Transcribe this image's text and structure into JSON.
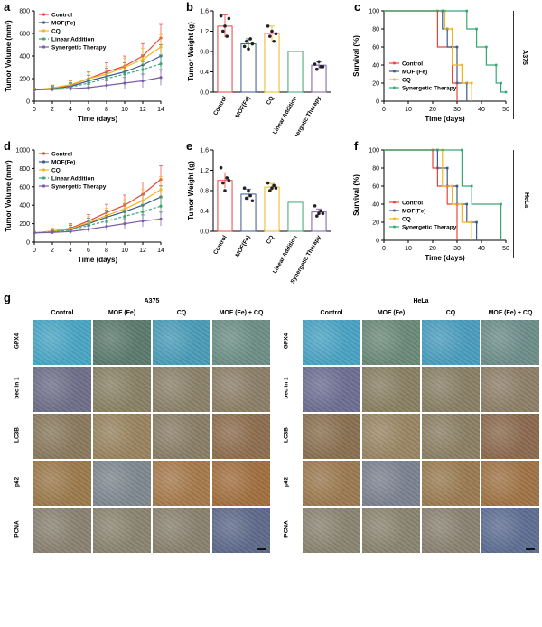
{
  "panel_labels": {
    "a": "a",
    "b": "b",
    "c": "c",
    "d": "d",
    "e": "e",
    "f": "f",
    "g": "g"
  },
  "side_labels": {
    "c": "A375",
    "f": "HeLa"
  },
  "colors": {
    "control": "#e8453c",
    "mof": "#3b5a8a",
    "cq": "#f2b51d",
    "linear": "#3aa876",
    "synergetic": "#7a5ca8",
    "edge": "#333333"
  },
  "chart_data": [
    {
      "id": "a",
      "type": "line",
      "title": "",
      "xlabel": "Time (days)",
      "ylabel": "Tumor Volume (mm³)",
      "x": [
        0,
        2,
        4,
        6,
        8,
        10,
        12,
        14
      ],
      "xlim": [
        0,
        14
      ],
      "ylim": [
        0,
        800
      ],
      "xticks": [
        "0",
        "2",
        "4",
        "6",
        "8",
        "10",
        "12",
        "14"
      ],
      "yticks": [
        "0",
        "200",
        "400",
        "600",
        "800"
      ],
      "series": [
        {
          "name": "Control",
          "color": "#e8453c",
          "values": [
            100,
            115,
            140,
            200,
            260,
            310,
            400,
            560
          ],
          "err": [
            15,
            25,
            40,
            60,
            80,
            90,
            110,
            120
          ],
          "dashed": false
        },
        {
          "name": "MOF(Fe)",
          "color": "#3b5a8a",
          "values": [
            100,
            112,
            130,
            180,
            220,
            260,
            320,
            400
          ],
          "err": [
            15,
            25,
            35,
            50,
            70,
            80,
            90,
            100
          ],
          "dashed": false
        },
        {
          "name": "CQ",
          "color": "#f2b51d",
          "values": [
            100,
            118,
            145,
            200,
            240,
            300,
            370,
            480
          ],
          "err": [
            15,
            25,
            40,
            55,
            70,
            80,
            100,
            110
          ],
          "dashed": false
        },
        {
          "name": "Linear Addition",
          "color": "#3aa876",
          "values": [
            100,
            110,
            125,
            160,
            200,
            240,
            280,
            330
          ],
          "err": [
            10,
            20,
            30,
            40,
            50,
            60,
            70,
            80
          ],
          "dashed": true
        },
        {
          "name": "Synergetic Therapy",
          "color": "#7a5ca8",
          "values": [
            100,
            105,
            110,
            120,
            140,
            160,
            180,
            210
          ],
          "err": [
            10,
            15,
            20,
            30,
            40,
            50,
            60,
            70
          ],
          "dashed": false
        }
      ]
    },
    {
      "id": "b",
      "type": "bar",
      "title": "",
      "xlabel": "",
      "ylabel": "Tumor Weight (g)",
      "ylim": [
        0,
        1.6
      ],
      "yticks": [
        "0.0",
        "0.4",
        "0.8",
        "1.2",
        "1.6"
      ],
      "categories": [
        "Control",
        "MOF(Fe)",
        "CQ",
        "Linear Addition",
        "Synergetic Therapy"
      ],
      "values": [
        1.3,
        0.95,
        1.15,
        0.8,
        0.53
      ],
      "err": [
        0.22,
        0.1,
        0.15,
        0,
        0.07
      ],
      "points": [
        [
          1.5,
          1.2,
          1.3,
          1.1,
          1.45
        ],
        [
          0.9,
          1.0,
          0.85,
          1.05,
          0.95
        ],
        [
          1.3,
          1.1,
          1.2,
          1.0,
          1.15
        ],
        [],
        [
          0.55,
          0.45,
          0.6,
          0.5,
          0.5
        ]
      ],
      "colors": [
        "#e8453c",
        "#3b5a8a",
        "#f2b51d",
        "#3aa876",
        "#7a5ca8"
      ]
    },
    {
      "id": "c",
      "type": "line",
      "title": "",
      "xlabel": "Time (days)",
      "ylabel": "Survival (%)",
      "xlim": [
        0,
        50
      ],
      "ylim": [
        0,
        100
      ],
      "xticks": [
        "0",
        "10",
        "20",
        "30",
        "40",
        "50"
      ],
      "yticks": [
        "0",
        "20",
        "40",
        "60",
        "80",
        "100"
      ],
      "series": [
        {
          "name": "Control",
          "color": "#e8453c",
          "steps": [
            [
              0,
              100
            ],
            [
              22,
              100
            ],
            [
              22,
              60
            ],
            [
              28,
              60
            ],
            [
              28,
              20
            ],
            [
              30,
              20
            ],
            [
              30,
              0
            ]
          ]
        },
        {
          "name": "MOF (Fe)",
          "color": "#3b5a8a",
          "steps": [
            [
              0,
              100
            ],
            [
              24,
              100
            ],
            [
              24,
              80
            ],
            [
              26,
              80
            ],
            [
              26,
              60
            ],
            [
              30,
              60
            ],
            [
              30,
              20
            ],
            [
              34,
              20
            ],
            [
              34,
              0
            ]
          ]
        },
        {
          "name": "CQ",
          "color": "#f2b51d",
          "steps": [
            [
              0,
              100
            ],
            [
              25,
              100
            ],
            [
              25,
              80
            ],
            [
              28,
              80
            ],
            [
              28,
              40
            ],
            [
              32,
              40
            ],
            [
              32,
              20
            ],
            [
              36,
              20
            ],
            [
              36,
              0
            ]
          ]
        },
        {
          "name": "Synergetic Therapy",
          "color": "#3aa876",
          "steps": [
            [
              0,
              100
            ],
            [
              34,
              100
            ],
            [
              34,
              80
            ],
            [
              38,
              80
            ],
            [
              38,
              60
            ],
            [
              42,
              60
            ],
            [
              42,
              40
            ],
            [
              46,
              40
            ],
            [
              46,
              20
            ],
            [
              48,
              20
            ],
            [
              48,
              10
            ],
            [
              50,
              10
            ]
          ]
        }
      ]
    },
    {
      "id": "d",
      "type": "line",
      "title": "",
      "xlabel": "Time (days)",
      "ylabel": "Tumor Volume (mm³)",
      "x": [
        0,
        2,
        4,
        6,
        8,
        10,
        12,
        14
      ],
      "xlim": [
        0,
        14
      ],
      "ylim": [
        0,
        1000
      ],
      "xticks": [
        "0",
        "2",
        "4",
        "6",
        "8",
        "10",
        "12",
        "14"
      ],
      "yticks": [
        "0",
        "200",
        "400",
        "600",
        "800",
        "1000"
      ],
      "series": [
        {
          "name": "Control",
          "color": "#e8453c",
          "values": [
            100,
            120,
            150,
            230,
            320,
            400,
            520,
            680
          ],
          "err": [
            15,
            30,
            50,
            70,
            90,
            110,
            130,
            150
          ],
          "dashed": false
        },
        {
          "name": "MOF(Fe)",
          "color": "#3b5a8a",
          "values": [
            100,
            115,
            140,
            200,
            270,
            330,
            400,
            490
          ],
          "err": [
            15,
            25,
            40,
            60,
            80,
            90,
            110,
            120
          ],
          "dashed": false
        },
        {
          "name": "CQ",
          "color": "#f2b51d",
          "values": [
            100,
            118,
            145,
            210,
            290,
            360,
            450,
            570
          ],
          "err": [
            15,
            30,
            45,
            65,
            80,
            100,
            120,
            140
          ],
          "dashed": false
        },
        {
          "name": "Linear Addition",
          "color": "#3aa876",
          "values": [
            100,
            110,
            130,
            180,
            230,
            280,
            330,
            390
          ],
          "err": [
            10,
            20,
            35,
            50,
            60,
            70,
            80,
            90
          ],
          "dashed": true
        },
        {
          "name": "Synergetic Therapy",
          "color": "#7a5ca8",
          "values": [
            100,
            105,
            115,
            140,
            170,
            200,
            230,
            250
          ],
          "err": [
            10,
            15,
            25,
            35,
            45,
            55,
            65,
            75
          ],
          "dashed": false
        }
      ]
    },
    {
      "id": "e",
      "type": "bar",
      "title": "",
      "xlabel": "",
      "ylabel": "Tumor Weight (g)",
      "ylim": [
        0,
        1.6
      ],
      "yticks": [
        "0.0",
        "0.4",
        "0.8",
        "1.2",
        "1.6"
      ],
      "categories": [
        "Control",
        "MOF(Fe)",
        "CQ",
        "Linear Addition",
        "Synergetic Therapy"
      ],
      "values": [
        1.0,
        0.73,
        0.87,
        0.57,
        0.38
      ],
      "err": [
        0.15,
        0.1,
        0.07,
        0,
        0.06
      ],
      "points": [
        [
          1.25,
          0.95,
          0.8,
          1.05,
          1.0
        ],
        [
          0.85,
          0.65,
          0.8,
          0.7,
          0.6
        ],
        [
          0.95,
          0.8,
          0.85,
          0.9,
          0.85
        ],
        [],
        [
          0.5,
          0.3,
          0.35,
          0.4,
          0.35
        ]
      ],
      "colors": [
        "#e8453c",
        "#3b5a8a",
        "#f2b51d",
        "#3aa876",
        "#7a5ca8"
      ]
    },
    {
      "id": "f",
      "type": "line",
      "title": "",
      "xlabel": "Time (days)",
      "ylabel": "Survival (%)",
      "xlim": [
        0,
        50
      ],
      "ylim": [
        0,
        100
      ],
      "xticks": [
        "0",
        "10",
        "20",
        "30",
        "40",
        "50"
      ],
      "yticks": [
        "0",
        "20",
        "40",
        "60",
        "80",
        "100"
      ],
      "series": [
        {
          "name": "Control",
          "color": "#e8453c",
          "steps": [
            [
              0,
              100
            ],
            [
              20,
              100
            ],
            [
              20,
              80
            ],
            [
              22,
              80
            ],
            [
              22,
              60
            ],
            [
              26,
              60
            ],
            [
              26,
              40
            ],
            [
              30,
              40
            ],
            [
              30,
              0
            ]
          ]
        },
        {
          "name": "MOF(Fe)",
          "color": "#3b5a8a",
          "steps": [
            [
              0,
              100
            ],
            [
              22,
              100
            ],
            [
              22,
              80
            ],
            [
              26,
              80
            ],
            [
              26,
              60
            ],
            [
              30,
              60
            ],
            [
              30,
              40
            ],
            [
              34,
              40
            ],
            [
              34,
              20
            ],
            [
              38,
              20
            ],
            [
              38,
              0
            ]
          ]
        },
        {
          "name": "CQ",
          "color": "#f2b51d",
          "steps": [
            [
              0,
              100
            ],
            [
              24,
              100
            ],
            [
              24,
              60
            ],
            [
              28,
              60
            ],
            [
              28,
              40
            ],
            [
              32,
              40
            ],
            [
              32,
              20
            ],
            [
              36,
              20
            ],
            [
              36,
              0
            ]
          ]
        },
        {
          "name": "Synergetic Therapy",
          "color": "#3aa876",
          "steps": [
            [
              0,
              100
            ],
            [
              32,
              100
            ],
            [
              32,
              60
            ],
            [
              36,
              60
            ],
            [
              36,
              40
            ],
            [
              48,
              40
            ],
            [
              48,
              0
            ]
          ]
        }
      ]
    }
  ],
  "histology": {
    "groups": [
      {
        "name": "A375",
        "columns": [
          "Control",
          "MOF (Fe)",
          "CQ",
          "MOF (Fe) + CQ"
        ]
      },
      {
        "name": "HeLa",
        "columns": [
          "Control",
          "MOF (Fe)",
          "CQ",
          "MOF (Fe) + CQ"
        ]
      }
    ],
    "rows": [
      "GPX4",
      "beclin 1",
      "LC3B",
      "p62",
      "PCNA"
    ],
    "tile_colors": [
      [
        [
          "#4aa6c4",
          "#5c7a6e",
          "#4a9cb8",
          "#6d8f86",
          "#4aa3c4",
          "#6b8a78",
          "#4a9dbe",
          "#6e8e8a"
        ]
      ],
      [
        [
          "#6f6f8a",
          "#8a8266",
          "#8c826a",
          "#8d8068",
          "#6e6f92",
          "#8a8064",
          "#8a8066",
          "#8e8068"
        ]
      ],
      [
        [
          "#8a7a5e",
          "#9a8460",
          "#8a7e66",
          "#8e6e4e",
          "#8a7050",
          "#9a8664",
          "#8c8064",
          "#8c6a4e"
        ]
      ],
      [
        [
          "#9c7a4c",
          "#7f8890",
          "#a67a4c",
          "#a27040",
          "#9c7a50",
          "#7c8290",
          "#9a7c52",
          "#a07446"
        ]
      ],
      [
        [
          "#8a8272",
          "#8a8470",
          "#8a8270",
          "#5e6a8a",
          "#8a8472",
          "#8a8470",
          "#8a8272",
          "#5e6e92"
        ]
      ]
    ]
  }
}
